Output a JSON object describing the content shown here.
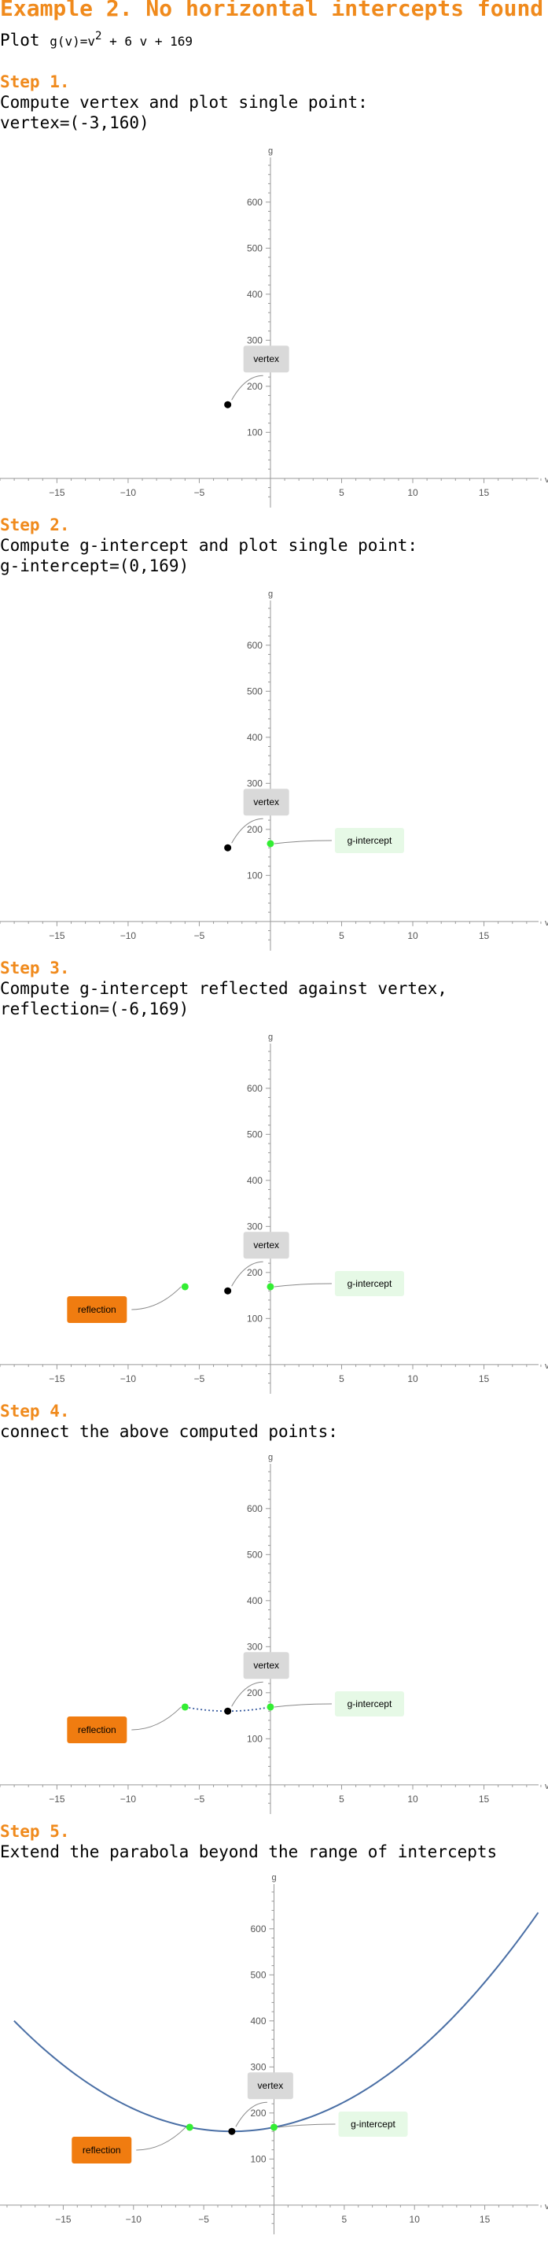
{
  "header": {
    "title": "Example 2. No horizontal intercepts found",
    "plot_prefix": "Plot ",
    "func_lhs": "g(v)=v",
    "func_exp": "2",
    "func_rhs": " + 6 v + 169"
  },
  "steps": [
    {
      "title": "Step 1.",
      "line1": "Compute vertex and plot single point:",
      "line2": "vertex=(-3,160)"
    },
    {
      "title": "Step 2.",
      "line1": "Compute g-intercept and plot single point:",
      "line2": "g-intercept=(0,169)"
    },
    {
      "title": "Step 3.",
      "line1": "Compute g-intercept reflected against vertex,",
      "line2": "reflection=(-6,169)"
    },
    {
      "title": "Step 4.",
      "line1": "connect the above computed points:",
      "line2": ""
    },
    {
      "title": "Step 5.",
      "line1": "Extend the parabola beyond the range of intercepts",
      "line2": ""
    }
  ],
  "chart_data": [
    {
      "type": "scatter",
      "xlabel": "v",
      "ylabel": "g",
      "xlim": [
        -19,
        19.5
      ],
      "ylim": [
        -55,
        680
      ],
      "xticks": [
        -15,
        -10,
        -5,
        5,
        10,
        15
      ],
      "yticks": [
        100,
        200,
        300,
        400,
        500,
        600
      ],
      "points": [
        {
          "x": -3,
          "y": 160,
          "label": "vertex",
          "color": "#000000"
        }
      ],
      "curve": "none"
    },
    {
      "type": "scatter",
      "xlabel": "v",
      "ylabel": "g",
      "xlim": [
        -19,
        19.5
      ],
      "ylim": [
        -55,
        680
      ],
      "xticks": [
        -15,
        -10,
        -5,
        5,
        10,
        15
      ],
      "yticks": [
        100,
        200,
        300,
        400,
        500,
        600
      ],
      "points": [
        {
          "x": -3,
          "y": 160,
          "label": "vertex",
          "color": "#000000"
        },
        {
          "x": 0,
          "y": 169,
          "label": "g-intercept",
          "color": "#33ee33"
        }
      ],
      "curve": "none"
    },
    {
      "type": "scatter",
      "xlabel": "v",
      "ylabel": "g",
      "xlim": [
        -19,
        19.5
      ],
      "ylim": [
        -55,
        680
      ],
      "xticks": [
        -15,
        -10,
        -5,
        5,
        10,
        15
      ],
      "yticks": [
        100,
        200,
        300,
        400,
        500,
        600
      ],
      "points": [
        {
          "x": -3,
          "y": 160,
          "label": "vertex",
          "color": "#000000"
        },
        {
          "x": 0,
          "y": 169,
          "label": "g-intercept",
          "color": "#33ee33"
        },
        {
          "x": -6,
          "y": 169,
          "label": "reflection",
          "color": "#33ee33"
        }
      ],
      "curve": "none"
    },
    {
      "type": "scatter",
      "xlabel": "v",
      "ylabel": "g",
      "xlim": [
        -19,
        19.5
      ],
      "ylim": [
        -55,
        680
      ],
      "xticks": [
        -15,
        -10,
        -5,
        5,
        10,
        15
      ],
      "yticks": [
        100,
        200,
        300,
        400,
        500,
        600
      ],
      "points": [
        {
          "x": -3,
          "y": 160,
          "label": "vertex",
          "color": "#000000"
        },
        {
          "x": 0,
          "y": 169,
          "label": "g-intercept",
          "color": "#33ee33"
        },
        {
          "x": -6,
          "y": 169,
          "label": "reflection",
          "color": "#33ee33"
        }
      ],
      "curve": "dotted",
      "curve_range": [
        -6,
        0
      ]
    },
    {
      "type": "line",
      "xlabel": "v",
      "ylabel": "g",
      "xlim": [
        -19.5,
        19.5
      ],
      "ylim": [
        -55,
        680
      ],
      "xticks": [
        -15,
        -10,
        -5,
        5,
        10,
        15
      ],
      "yticks": [
        100,
        200,
        300,
        400,
        500,
        600
      ],
      "points": [
        {
          "x": -3,
          "y": 160,
          "label": "vertex",
          "color": "#000000"
        },
        {
          "x": 0,
          "y": 169,
          "label": "g-intercept",
          "color": "#33ee33"
        },
        {
          "x": -6,
          "y": 169,
          "label": "reflection",
          "color": "#33ee33"
        }
      ],
      "curve": "solid",
      "curve_range": [
        -18.5,
        18.8
      ],
      "curve_color": "#4a6fa5"
    }
  ]
}
